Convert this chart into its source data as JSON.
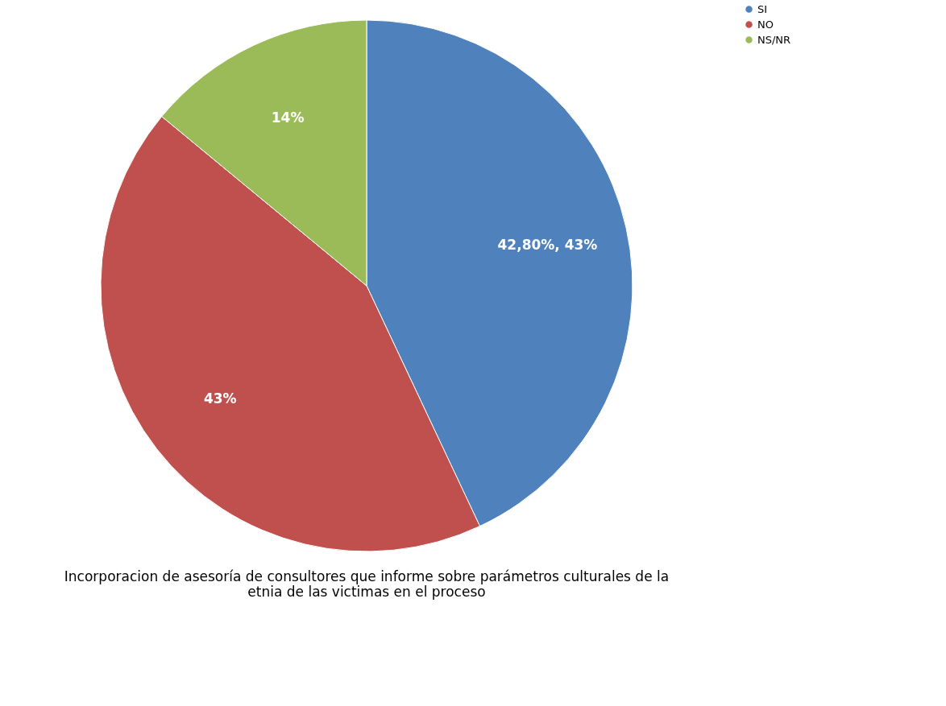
{
  "chart_data": {
    "type": "pie",
    "title": "Incorporacion de asesoría de consultores que informe sobre parámetros culturales de la etnia de las victimas en el proceso",
    "categories": [
      "SI",
      "NO",
      "NS/NR"
    ],
    "values": [
      43,
      43,
      14
    ],
    "value_labels": [
      "42,80%, 43%",
      "43%",
      "14%"
    ],
    "colors": [
      "#4f81bd",
      "#c0504d",
      "#9bbb59"
    ],
    "legend": "right"
  }
}
